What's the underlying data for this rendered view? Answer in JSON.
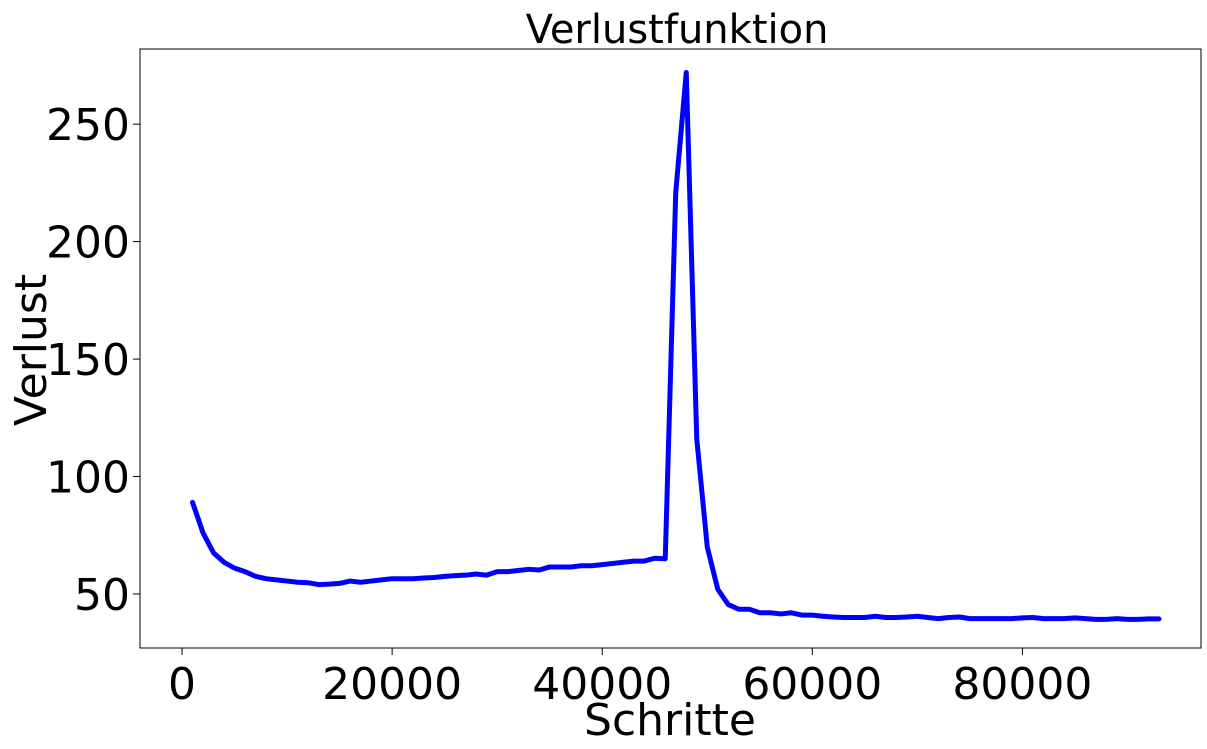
{
  "chart_data": {
    "type": "line",
    "title": "Verlustfunktion",
    "xlabel": "Schritte",
    "ylabel": "Verlust",
    "xlim": [
      -4000,
      97000
    ],
    "ylim": [
      27,
      282
    ],
    "xticks": [
      0,
      20000,
      40000,
      60000,
      80000
    ],
    "yticks": [
      50,
      100,
      150,
      200,
      250
    ],
    "grid": false,
    "line_color": "#0000ff",
    "series": [
      {
        "x": [
          1000,
          2000,
          3000,
          4000,
          5000,
          6000,
          7000,
          8000,
          9000,
          10000,
          11000,
          12000,
          13000,
          14000,
          15000,
          16000,
          17000,
          18000,
          19000,
          20000,
          21000,
          22000,
          23000,
          24000,
          25000,
          26000,
          27000,
          28000,
          29000,
          30000,
          31000,
          32000,
          33000,
          34000,
          35000,
          36000,
          37000,
          38000,
          39000,
          40000,
          41000,
          42000,
          43000,
          44000,
          45000,
          46000,
          47000,
          48000,
          49000,
          50000,
          51000,
          52000,
          53000,
          54000,
          55000,
          56000,
          57000,
          58000,
          59000,
          60000,
          61000,
          62000,
          63000,
          64000,
          65000,
          66000,
          67000,
          68000,
          69000,
          70000,
          71000,
          72000,
          73000,
          74000,
          75000,
          76000,
          77000,
          78000,
          79000,
          80000,
          81000,
          82000,
          83000,
          84000,
          85000,
          86000,
          87000,
          88000,
          89000,
          90000,
          91000,
          92000,
          93000
        ],
        "values": [
          89,
          76,
          67.5,
          63.5,
          61,
          59.5,
          57.5,
          56.5,
          56,
          55.5,
          55,
          54.8,
          54,
          54.2,
          54.5,
          55.5,
          55,
          55.5,
          56,
          56.5,
          56.5,
          56.5,
          56.8,
          57,
          57.5,
          57.8,
          58,
          58.5,
          58,
          59.5,
          59.5,
          60,
          60.5,
          60.2,
          61.5,
          61.5,
          61.5,
          62,
          62,
          62.5,
          63,
          63.5,
          64,
          64,
          65.2,
          65,
          221,
          272,
          116,
          70,
          52,
          45.5,
          43.5,
          43.5,
          42,
          42,
          41.5,
          42,
          41,
          41,
          40.5,
          40.2,
          40,
          40,
          40,
          40.5,
          40,
          40,
          40.2,
          40.5,
          40,
          39.5,
          40,
          40.2,
          39.5,
          39.5,
          39.5,
          39.5,
          39.5,
          39.8,
          40,
          39.5,
          39.5,
          39.5,
          39.8,
          39.5,
          39.2,
          39.2,
          39.5,
          39.2,
          39.2,
          39.4,
          39.4
        ]
      }
    ]
  }
}
